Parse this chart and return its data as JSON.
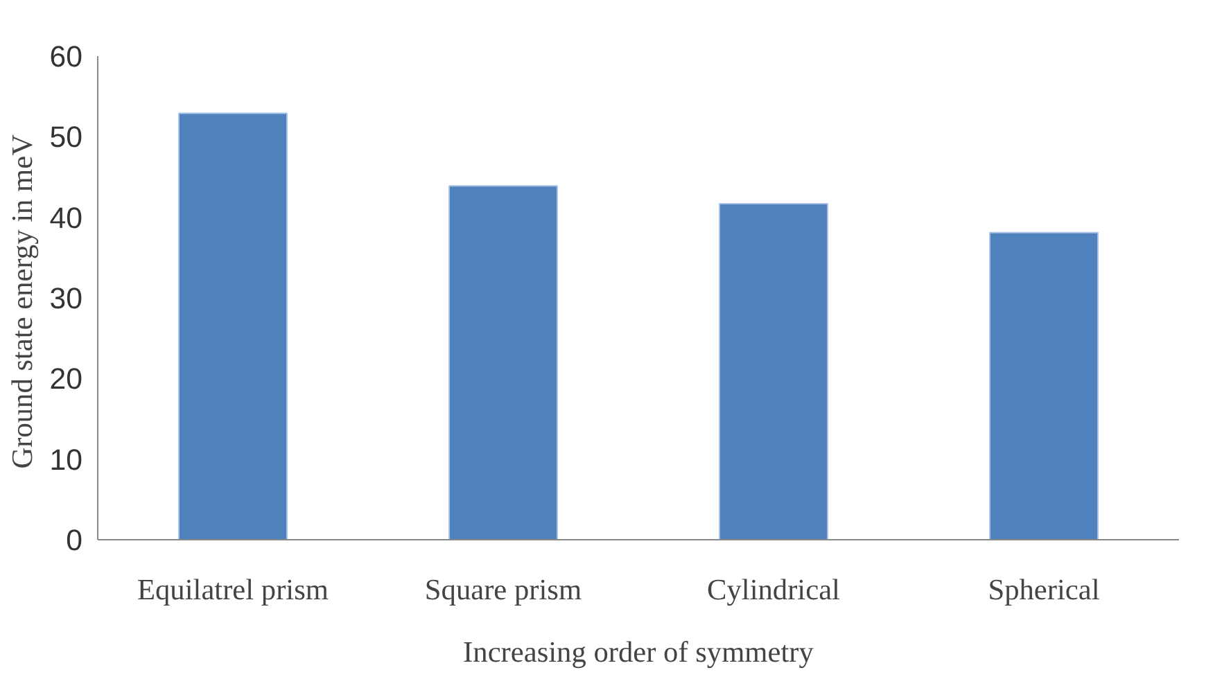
{
  "chart_data": {
    "type": "bar",
    "xlabel": "Increasing order of symmetry",
    "ylabel": "Ground state energy  in meV",
    "categories": [
      "Equilatrel prism",
      "Square prism",
      "Cylindrical",
      "Spherical"
    ],
    "values": [
      52.9,
      43.9,
      41.7,
      38.1
    ],
    "color": "#4f81bd",
    "ylim": [
      0,
      60
    ],
    "yticks": [
      0,
      10,
      20,
      30,
      40,
      50,
      60
    ],
    "grid": false
  }
}
